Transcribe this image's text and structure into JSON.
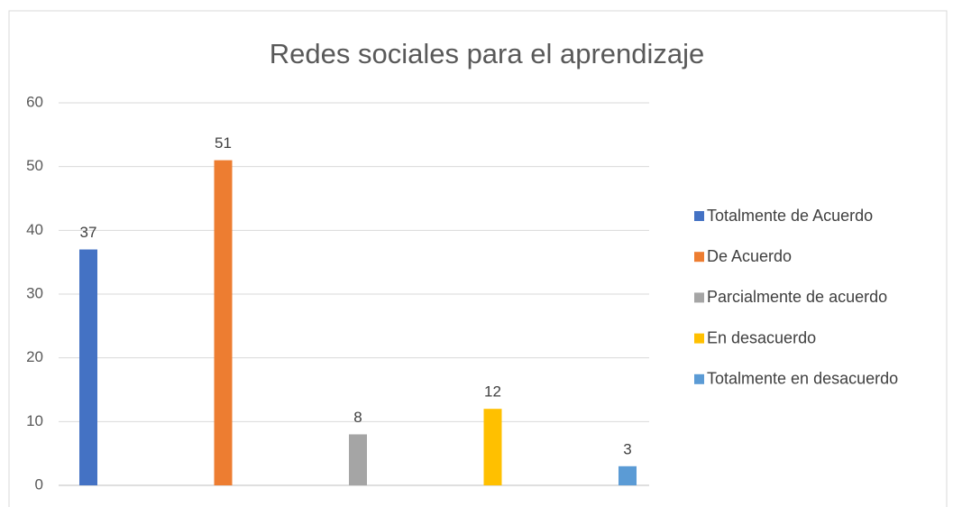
{
  "chart_data": {
    "type": "bar",
    "title": "Redes sociales para el aprendizaje",
    "categories": [
      null
    ],
    "series": [
      {
        "name": "Totalmente de Acuerdo",
        "color": "#4472c4",
        "values": [
          37
        ]
      },
      {
        "name": "De Acuerdo",
        "color": "#ed7d31",
        "values": [
          51
        ]
      },
      {
        "name": "Parcialmente de acuerdo",
        "color": "#a5a5a5",
        "values": [
          8
        ]
      },
      {
        "name": "En desacuerdo",
        "color": "#ffc000",
        "values": [
          12
        ]
      },
      {
        "name": "Totalmente en desacuerdo",
        "color": "#5b9bd5",
        "values": [
          3
        ]
      }
    ],
    "ylim": [
      0,
      60
    ],
    "yticks": [
      0,
      10,
      20,
      30,
      40,
      50,
      60
    ],
    "grid": true,
    "legend": "right"
  }
}
